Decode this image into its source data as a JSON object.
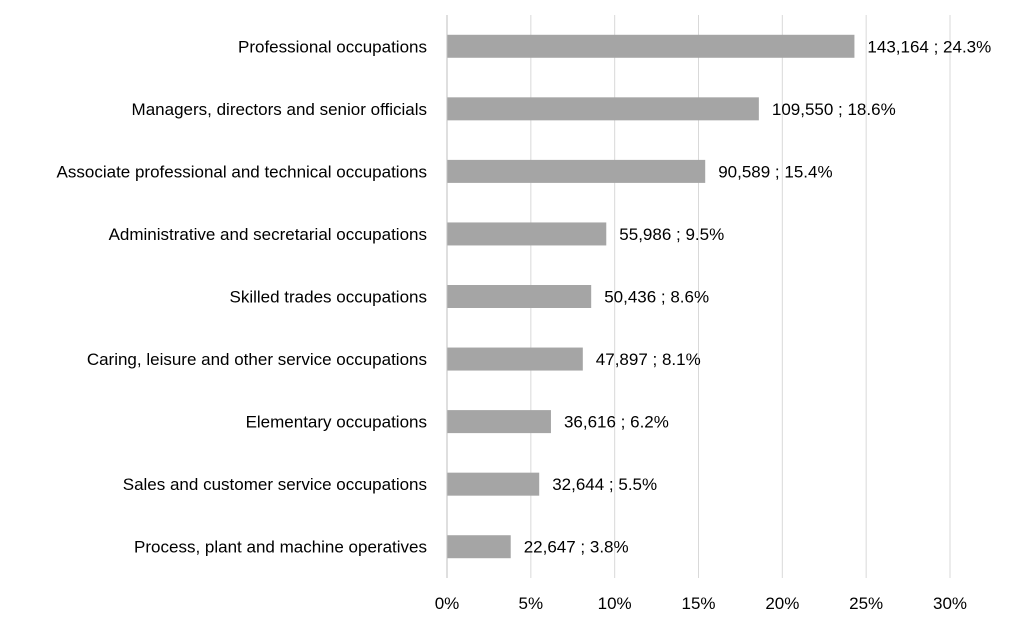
{
  "chart_data": {
    "type": "bar",
    "orientation": "horizontal",
    "categories": [
      "Professional occupations",
      "Managers, directors and senior officials",
      "Associate professional and technical occupations",
      "Administrative and secretarial occupations",
      "Skilled trades occupations",
      "Caring, leisure and other service occupations",
      "Elementary occupations",
      "Sales and customer service occupations",
      "Process, plant and machine operatives"
    ],
    "values": [
      24.3,
      18.6,
      15.4,
      9.5,
      8.6,
      8.1,
      6.2,
      5.5,
      3.8
    ],
    "data_labels": [
      "143,164 ; 24.3%",
      "109,550 ; 18.6%",
      "90,589 ; 15.4%",
      "55,986 ; 9.5%",
      "50,436 ; 8.6%",
      "47,897 ; 8.1%",
      "36,616 ; 6.2%",
      "32,644 ; 5.5%",
      "22,647 ; 3.8%"
    ],
    "x_ticks": [
      "0%",
      "5%",
      "10%",
      "15%",
      "20%",
      "25%",
      "30%"
    ],
    "xlim": [
      0,
      30
    ],
    "grid": "vertical",
    "bar_color": "#a5a5a5",
    "title": "",
    "xlabel": "",
    "ylabel": ""
  }
}
